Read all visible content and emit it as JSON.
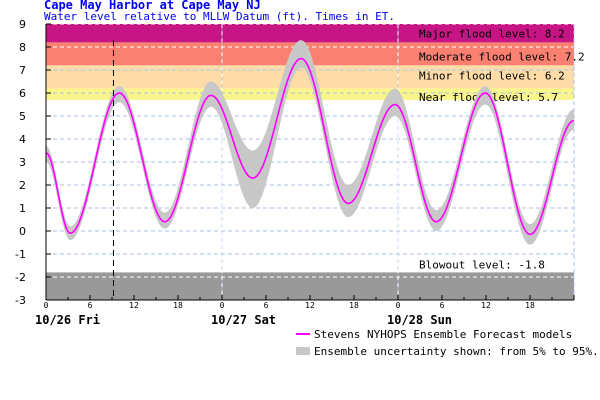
{
  "header": {
    "title": "Cape May Harbor at Cape May NJ",
    "subtitle": "Water level relative to MLLW Datum (ft). Times in ET."
  },
  "chart_data": {
    "type": "line",
    "ylim": [
      -3,
      9
    ],
    "yticks": [
      -3,
      -2,
      -1,
      0,
      1,
      2,
      3,
      4,
      5,
      6,
      7,
      8,
      9
    ],
    "xlim_hours": [
      0,
      72
    ],
    "xtick_labels": [
      "0",
      "6",
      "12",
      "18",
      "0",
      "6",
      "12",
      "18",
      "0",
      "6",
      "12",
      "18"
    ],
    "day_labels": [
      "10/26 Fri",
      "10/27 Sat",
      "10/28 Sun"
    ],
    "grid": true,
    "now_marker_hours": 9.2,
    "thresholds": [
      {
        "label": "Major flood level: 8.2",
        "value": 8.2,
        "color": "#C71585"
      },
      {
        "label": "Moderate flood level: 7.2",
        "value": 7.2,
        "color": "#FA8072"
      },
      {
        "label": "Minor flood level: 6.2",
        "value": 6.2,
        "color": "#FDDCA8"
      },
      {
        "label": "Near flood level: 5.7",
        "value": 5.7,
        "color": "#FAF58A"
      },
      {
        "label": "Blowout level: -1.8",
        "value": -1.8,
        "color": "#999999"
      }
    ],
    "series": [
      {
        "name": "Stevens NYHOPS Ensemble Forecast models",
        "color": "#FF00FF",
        "points_hours": [
          0,
          3.3,
          10,
          16.2,
          22.5,
          28.2,
          34.8,
          41.2,
          47.6,
          53.2,
          59.9,
          66,
          72
        ],
        "values": [
          3.4,
          -0.1,
          6.0,
          0.4,
          5.9,
          2.3,
          7.5,
          1.2,
          5.5,
          0.4,
          6.0,
          -0.15,
          4.8
        ],
        "p5": [
          3.0,
          -0.4,
          5.6,
          0.1,
          5.4,
          1.0,
          7.1,
          0.6,
          5.0,
          0.0,
          5.5,
          -0.6,
          4.4
        ],
        "p95": [
          3.7,
          0.2,
          6.3,
          0.8,
          6.5,
          3.5,
          8.3,
          2.0,
          6.2,
          0.9,
          6.3,
          0.3,
          5.3
        ]
      }
    ],
    "legend": {
      "line": "Stevens NYHOPS Ensemble Forecast models",
      "band": "Ensemble uncertainty shown: from 5% to 95%.",
      "band_color": "#C8C8C8",
      "placement": "bottom-right"
    }
  }
}
